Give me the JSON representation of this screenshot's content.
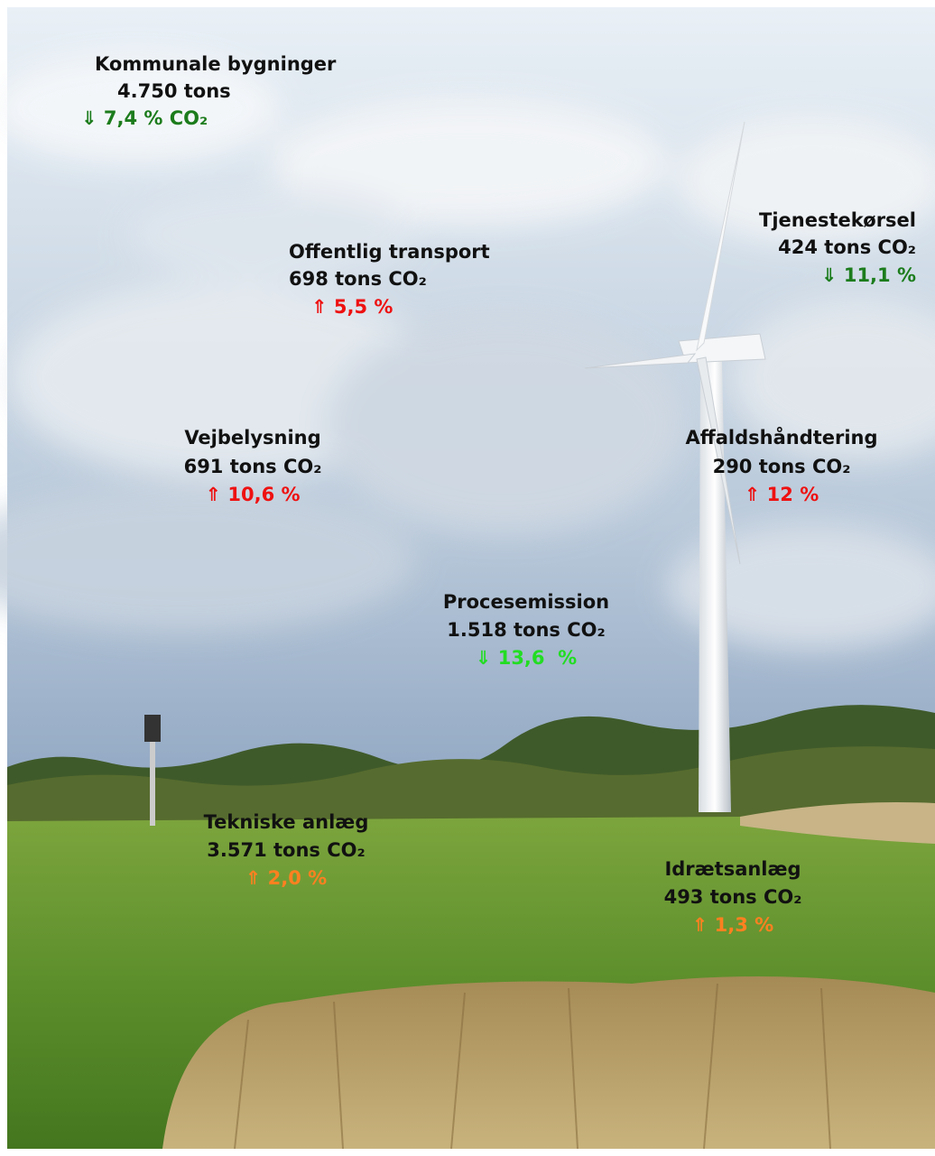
{
  "labels": [
    {
      "name": "Kommunale bygninger",
      "amount": "4.750 tons",
      "change": "⇓ 7,4 % CO₂",
      "color": "#1c7c1c"
    },
    {
      "name": "Offentlig transport",
      "amount": "698 tons CO₂",
      "change": "⇑ 5,5 %",
      "color": "#ee1111"
    },
    {
      "name": "Tjenestekørsel",
      "amount": "424 tons CO₂",
      "change": "⇓ 11,1 %",
      "color": "#1c7c1c"
    },
    {
      "name": "Vejbelysning",
      "amount": "691 tons CO₂",
      "change": "⇑ 10,6 %",
      "color": "#ee1111"
    },
    {
      "name": "Affaldshåndtering",
      "amount": "290 tons CO₂",
      "change": "⇑ 12 %",
      "color": "#ee1111"
    },
    {
      "name": "Procesemission",
      "amount": "1.518 tons CO₂",
      "change": "⇓ 13,6  %",
      "color": "#22dd22"
    },
    {
      "name": "Tekniske anlæg",
      "amount": "3.571 tons CO₂",
      "change": "⇑ 2,0 %",
      "color": "#ff8020"
    },
    {
      "name": "Idrætsanlæg",
      "amount": "493 tons CO₂",
      "change": "⇑ 1,3 %",
      "color": "#ff8020"
    }
  ]
}
